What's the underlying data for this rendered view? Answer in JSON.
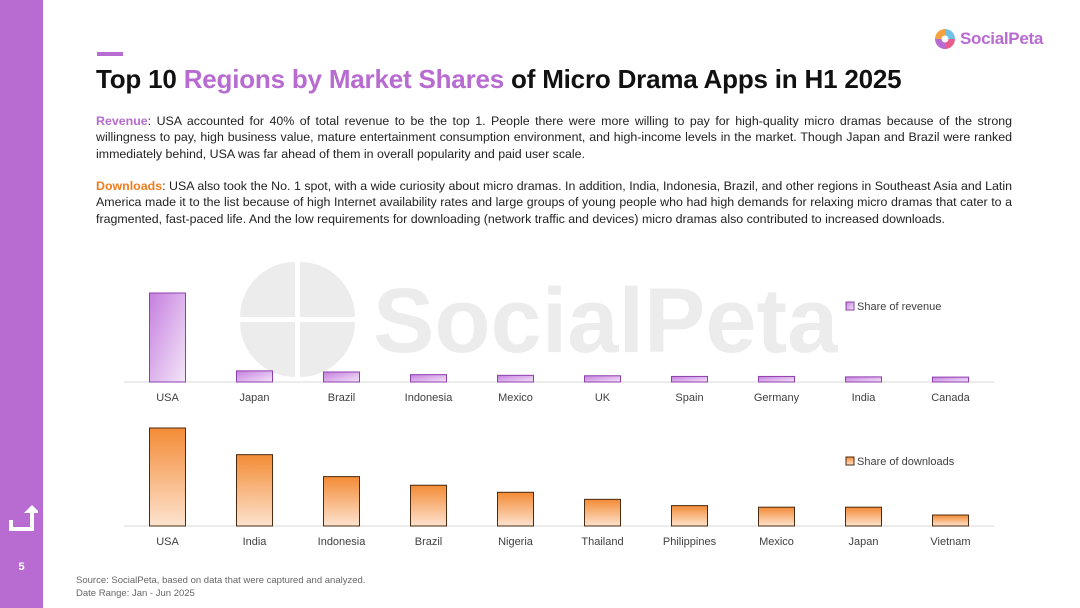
{
  "slide": {
    "page_number": "5",
    "title_part1": "Top 10 ",
    "title_highlight": "Regions by Market Shares",
    "title_part2": " of Micro Drama Apps in H1 2025",
    "logo_text": "SocialPeta",
    "watermark_text": "SocialPeta",
    "revenue_label": "Revenue",
    "revenue_text": ": USA accounted for 40% of total revenue to be the top 1. People there were more willing to pay for high-quality micro dramas because of the strong willingness to pay, high business value, mature entertainment consumption environment, and high-income levels in the market. Though Japan and Brazil were ranked immediately behind, USA was far ahead of them in overall popularity and paid user scale.",
    "downloads_label": "Downloads",
    "downloads_text": ": USA also took the No. 1 spot, with a wide curiosity about micro dramas. In addition, India, Indonesia, Brazil, and other regions in Southeast Asia and Latin America made it to the list because of high Internet availability rates and large groups of young people who had high demands for relaxing micro dramas that cater to a fragmented, fast-paced life. And the low requirements for downloading (network traffic and devices) micro dramas also contributed to increased downloads.",
    "source_line1": "Source: SocialPeta, based on data that were captured and analyzed.",
    "source_line2": "Date Range: Jan - Jun 2025",
    "accent_color": "#b86bd1",
    "downloads_color": "#f07c1e"
  },
  "chart_data": [
    {
      "type": "bar",
      "categories": [
        "USA",
        "Japan",
        "Brazil",
        "Indonesia",
        "Mexico",
        "UK",
        "Spain",
        "Germany",
        "India",
        "Canada"
      ],
      "series": [
        {
          "name": "Share of revenue",
          "values": [
            40,
            5,
            4.5,
            3.3,
            3,
            2.8,
            2.5,
            2.5,
            2.3,
            2.2
          ]
        }
      ],
      "ylim": [
        0,
        40
      ],
      "legend": "top-right",
      "grid": false
    },
    {
      "type": "bar",
      "categories": [
        "USA",
        "India",
        "Indonesia",
        "Brazil",
        "Nigeria",
        "Thailand",
        "Philippines",
        "Mexico",
        "Japan",
        "Vietnam"
      ],
      "series": [
        {
          "name": "Share of downloads",
          "values": [
            12.5,
            9.1,
            6.3,
            5.2,
            4.3,
            3.4,
            2.6,
            2.4,
            2.4,
            1.4
          ]
        }
      ],
      "ylim": [
        0,
        12.5
      ],
      "legend": "right",
      "grid": false
    }
  ]
}
